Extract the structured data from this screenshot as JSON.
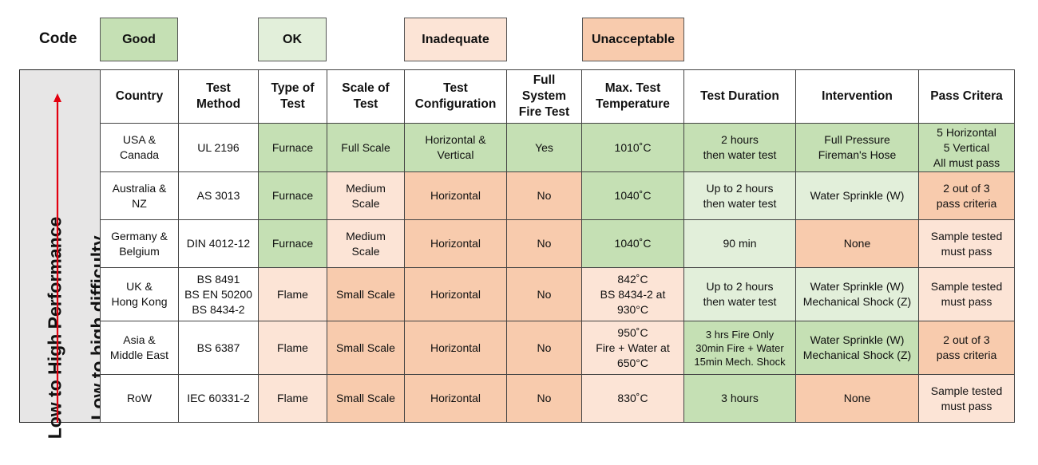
{
  "legend": {
    "label": "Code",
    "items": [
      {
        "label": "Good",
        "color": "#c5e0b4"
      },
      {
        "label": "OK",
        "color": "#e2efda"
      },
      {
        "label": "Inadequate",
        "color": "#fce4d6"
      },
      {
        "label": "Unacceptable",
        "color": "#f8cbad"
      }
    ]
  },
  "side": {
    "performance": "Low to High Performance",
    "difficulty": "Low to high difficulty",
    "arrow_color": "#e3000f"
  },
  "headers": [
    [
      "Country"
    ],
    [
      "Test",
      "Method"
    ],
    [
      "Type of",
      "Test"
    ],
    [
      "Scale of",
      "Test"
    ],
    [
      "Test",
      "Configuration"
    ],
    [
      "Full",
      "System",
      "Fire Test"
    ],
    [
      "Max. Test",
      "Temperature"
    ],
    [
      "Test Duration"
    ],
    [
      "Intervention"
    ],
    [
      "Pass Critera"
    ]
  ],
  "rows": [
    [
      {
        "lines": [
          "USA &",
          "Canada"
        ],
        "rating": "white"
      },
      {
        "lines": [
          "UL 2196"
        ],
        "rating": "white"
      },
      {
        "lines": [
          "Furnace"
        ],
        "rating": "good"
      },
      {
        "lines": [
          "Full Scale"
        ],
        "rating": "good"
      },
      {
        "lines": [
          "Horizontal &",
          "Vertical"
        ],
        "rating": "good"
      },
      {
        "lines": [
          "Yes"
        ],
        "rating": "good"
      },
      {
        "lines": [
          "1010˚C"
        ],
        "rating": "good"
      },
      {
        "lines": [
          "2 hours",
          "then water test"
        ],
        "rating": "good"
      },
      {
        "lines": [
          "Full Pressure",
          "Fireman's Hose"
        ],
        "rating": "good"
      },
      {
        "lines": [
          "5 Horizontal",
          "5 Vertical",
          "All must pass"
        ],
        "rating": "good"
      }
    ],
    [
      {
        "lines": [
          "Australia &",
          "NZ"
        ],
        "rating": "white"
      },
      {
        "lines": [
          "AS 3013"
        ],
        "rating": "white"
      },
      {
        "lines": [
          "Furnace"
        ],
        "rating": "good"
      },
      {
        "lines": [
          "Medium",
          "Scale"
        ],
        "rating": "inadequate"
      },
      {
        "lines": [
          "Horizontal"
        ],
        "rating": "unacceptable"
      },
      {
        "lines": [
          "No"
        ],
        "rating": "unacceptable"
      },
      {
        "lines": [
          "1040˚C"
        ],
        "rating": "good"
      },
      {
        "lines": [
          "Up to 2 hours",
          "then water test"
        ],
        "rating": "ok"
      },
      {
        "lines": [
          "Water Sprinkle (W)"
        ],
        "rating": "ok"
      },
      {
        "lines": [
          "2 out of 3",
          "pass criteria"
        ],
        "rating": "unacceptable"
      }
    ],
    [
      {
        "lines": [
          "Germany &",
          "Belgium"
        ],
        "rating": "white"
      },
      {
        "lines": [
          "DIN 4012-12"
        ],
        "rating": "white"
      },
      {
        "lines": [
          "Furnace"
        ],
        "rating": "good"
      },
      {
        "lines": [
          "Medium",
          "Scale"
        ],
        "rating": "inadequate"
      },
      {
        "lines": [
          "Horizontal"
        ],
        "rating": "unacceptable"
      },
      {
        "lines": [
          "No"
        ],
        "rating": "unacceptable"
      },
      {
        "lines": [
          "1040˚C"
        ],
        "rating": "good"
      },
      {
        "lines": [
          "90 min"
        ],
        "rating": "ok"
      },
      {
        "lines": [
          "None"
        ],
        "rating": "unacceptable"
      },
      {
        "lines": [
          "Sample tested",
          "must pass"
        ],
        "rating": "inadequate"
      }
    ],
    [
      {
        "lines": [
          "UK &",
          "Hong Kong"
        ],
        "rating": "white"
      },
      {
        "lines": [
          "BS 8491",
          "BS EN 50200",
          "BS 8434-2"
        ],
        "rating": "white"
      },
      {
        "lines": [
          "Flame"
        ],
        "rating": "inadequate"
      },
      {
        "lines": [
          "Small Scale"
        ],
        "rating": "unacceptable"
      },
      {
        "lines": [
          "Horizontal"
        ],
        "rating": "unacceptable"
      },
      {
        "lines": [
          "No"
        ],
        "rating": "unacceptable"
      },
      {
        "lines": [
          "842˚C",
          "BS 8434-2 at",
          "930°C"
        ],
        "rating": "inadequate"
      },
      {
        "lines": [
          "Up to 2 hours",
          "then water test"
        ],
        "rating": "ok"
      },
      {
        "lines": [
          "Water Sprinkle (W)",
          "Mechanical Shock (Z)"
        ],
        "rating": "ok"
      },
      {
        "lines": [
          "Sample tested",
          "must pass"
        ],
        "rating": "inadequate"
      }
    ],
    [
      {
        "lines": [
          "Asia &",
          "Middle East"
        ],
        "rating": "white"
      },
      {
        "lines": [
          "BS 6387"
        ],
        "rating": "white"
      },
      {
        "lines": [
          "Flame"
        ],
        "rating": "inadequate"
      },
      {
        "lines": [
          "Small Scale"
        ],
        "rating": "unacceptable"
      },
      {
        "lines": [
          "Horizontal"
        ],
        "rating": "unacceptable"
      },
      {
        "lines": [
          "No"
        ],
        "rating": "unacceptable"
      },
      {
        "lines": [
          "950˚C",
          "Fire + Water at",
          "650°C"
        ],
        "rating": "inadequate"
      },
      {
        "lines": [
          "3 hrs Fire Only",
          "30min Fire + Water",
          "15min Mech. Shock"
        ],
        "rating": "good",
        "small": true
      },
      {
        "lines": [
          "Water Sprinkle (W)",
          "Mechanical Shock (Z)"
        ],
        "rating": "good"
      },
      {
        "lines": [
          "2 out of 3",
          "pass criteria"
        ],
        "rating": "unacceptable"
      }
    ],
    [
      {
        "lines": [
          "RoW"
        ],
        "rating": "white"
      },
      {
        "lines": [
          "IEC 60331-2"
        ],
        "rating": "white"
      },
      {
        "lines": [
          "Flame"
        ],
        "rating": "inadequate"
      },
      {
        "lines": [
          "Small Scale"
        ],
        "rating": "unacceptable"
      },
      {
        "lines": [
          "Horizontal"
        ],
        "rating": "unacceptable"
      },
      {
        "lines": [
          "No"
        ],
        "rating": "unacceptable"
      },
      {
        "lines": [
          "830˚C"
        ],
        "rating": "inadequate"
      },
      {
        "lines": [
          "3 hours"
        ],
        "rating": "good"
      },
      {
        "lines": [
          "None"
        ],
        "rating": "unacceptable"
      },
      {
        "lines": [
          "Sample tested",
          "must pass"
        ],
        "rating": "inadequate"
      }
    ]
  ]
}
